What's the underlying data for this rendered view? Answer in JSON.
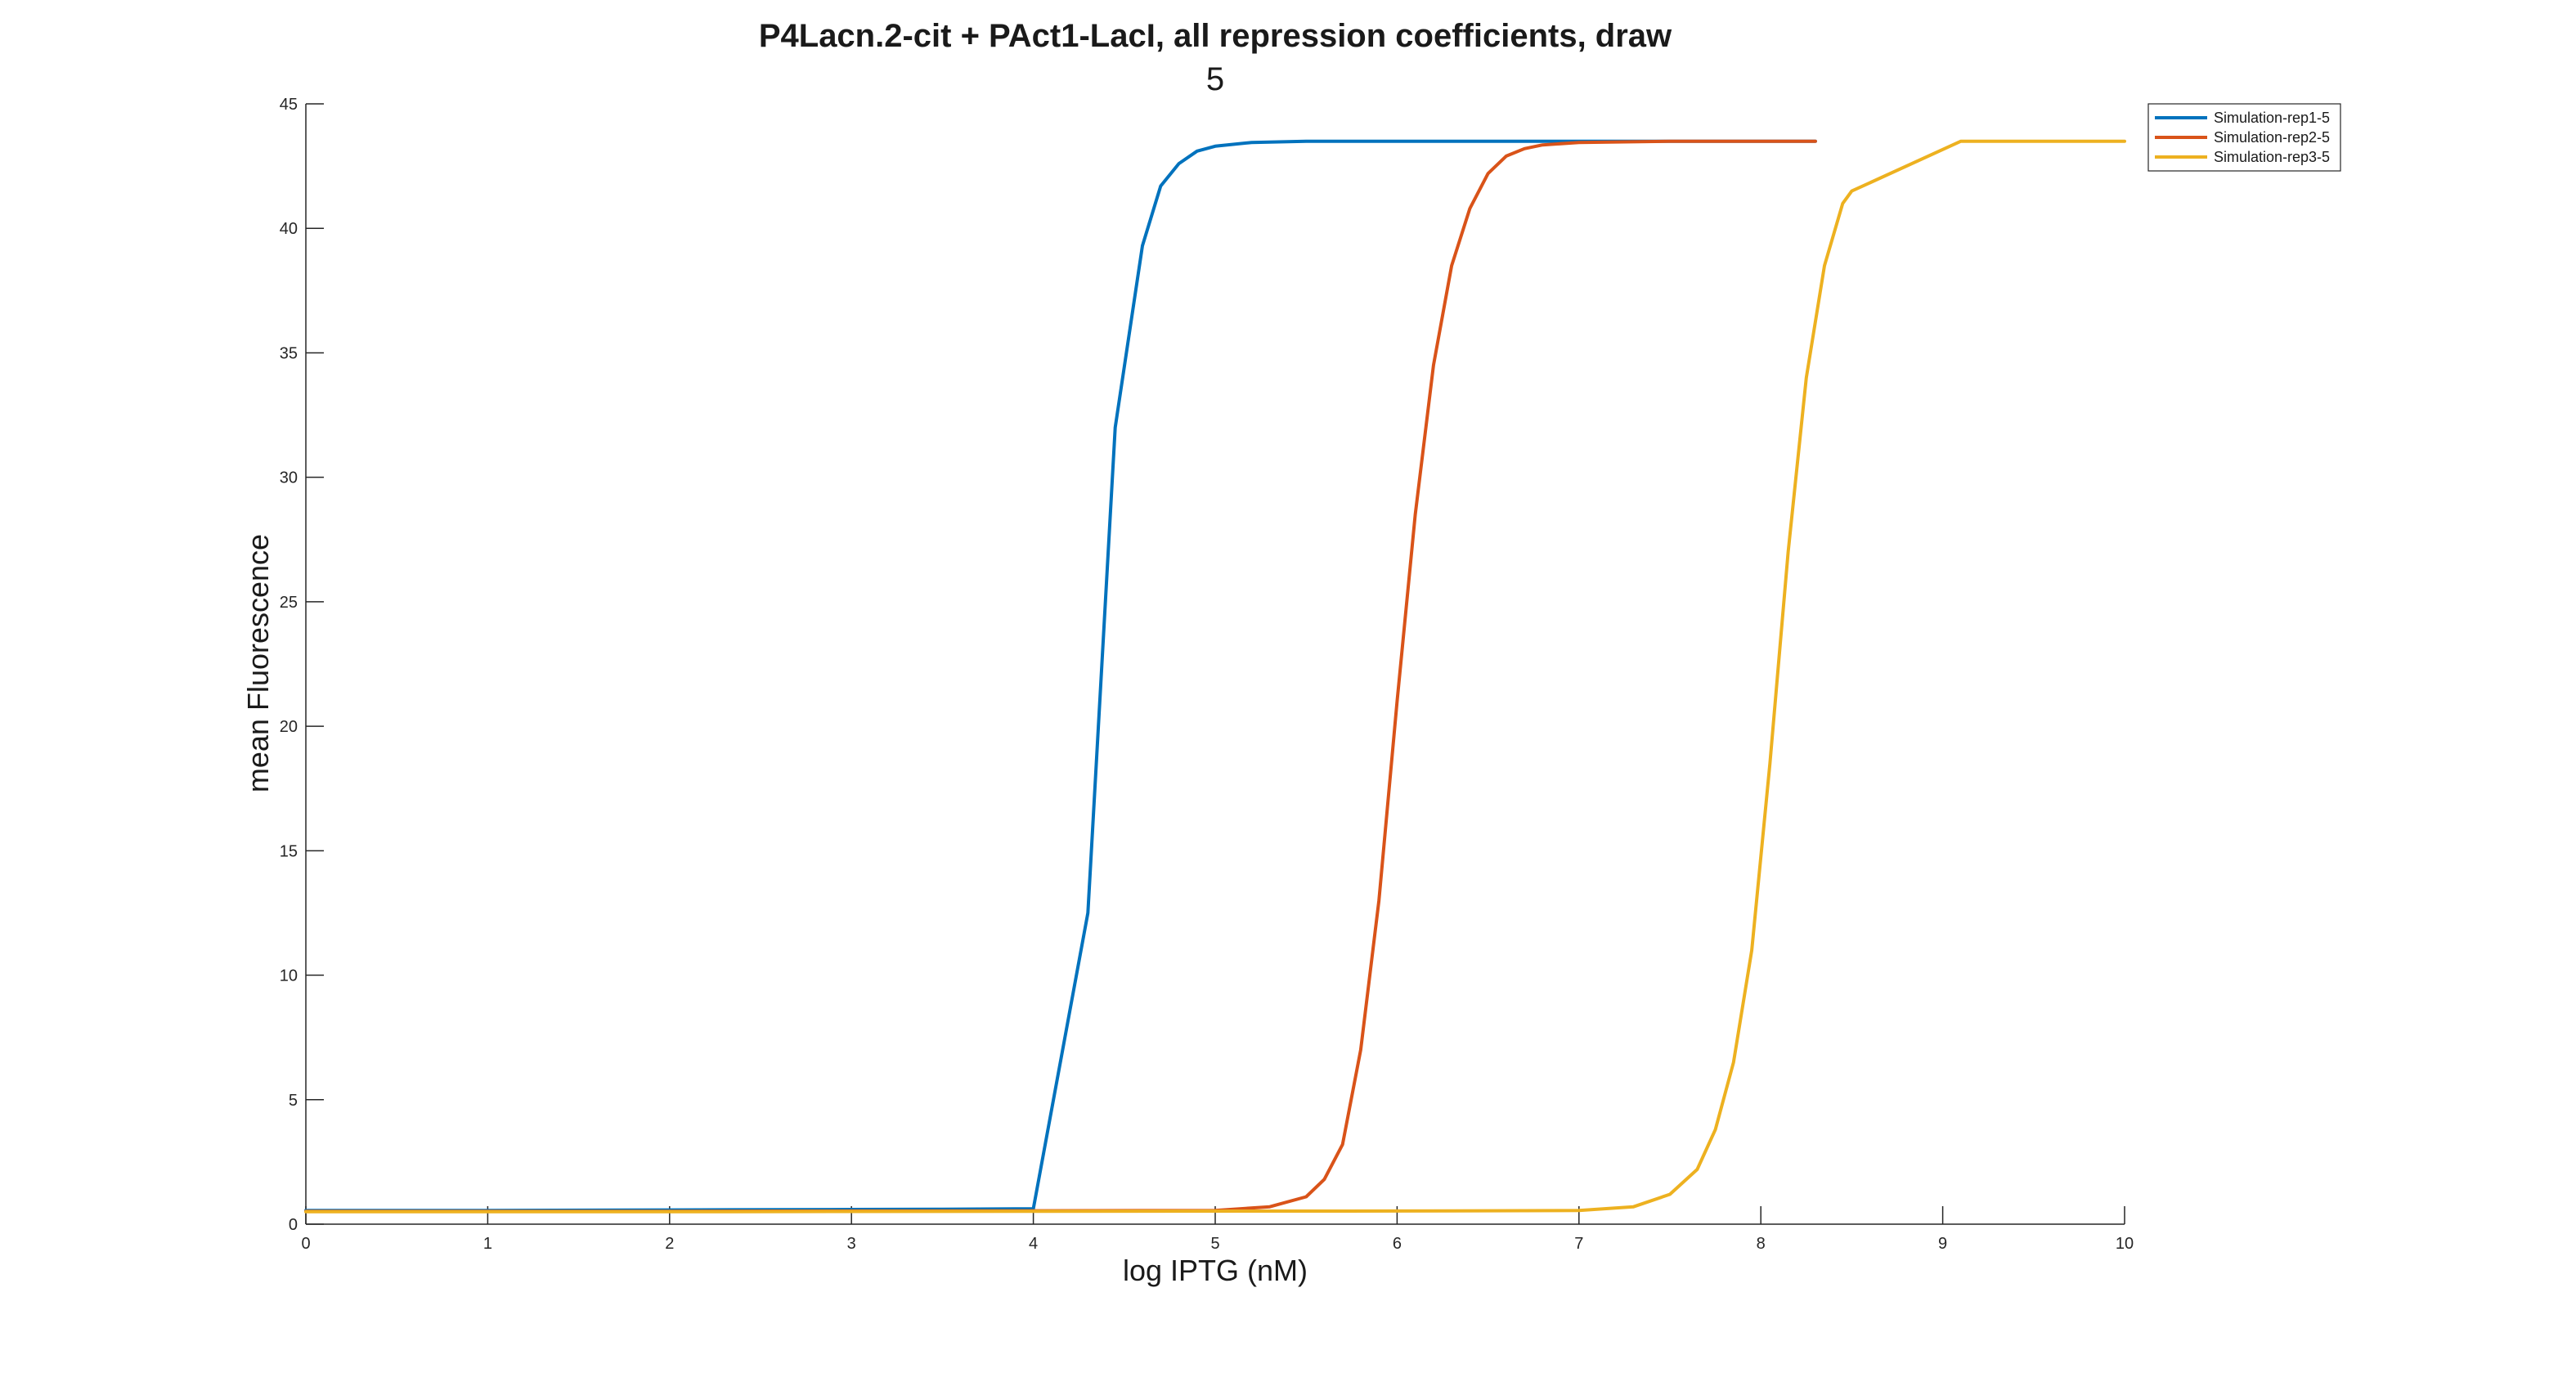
{
  "chart_data": {
    "type": "line",
    "title": "P4Lacn.2-cit + PAct1-LacI, all repression coefficients, draw",
    "subtitle": "5",
    "xlabel": "log IPTG (nM)",
    "ylabel": "mean Fluorescence",
    "xlim": [
      0,
      10
    ],
    "ylim": [
      0,
      45
    ],
    "xticks": [
      0,
      1,
      2,
      3,
      4,
      5,
      6,
      7,
      8,
      9,
      10
    ],
    "yticks": [
      0,
      5,
      10,
      15,
      20,
      25,
      30,
      35,
      40,
      45
    ],
    "grid": false,
    "legend_position": "top-right",
    "series": [
      {
        "name": "Simulation-rep1-5",
        "color": "#0072BD",
        "x": [
          0,
          1,
          2,
          3,
          3.5,
          4.0,
          4.3,
          4.45,
          4.6,
          4.7,
          4.8,
          4.9,
          5.0,
          5.2,
          5.5,
          6,
          7,
          8,
          8.3
        ],
        "y": [
          0.55,
          0.55,
          0.57,
          0.59,
          0.6,
          0.62,
          12.5,
          32.0,
          39.3,
          41.7,
          42.6,
          43.1,
          43.3,
          43.45,
          43.5,
          43.5,
          43.5,
          43.5,
          43.5
        ]
      },
      {
        "name": "Simulation-rep2-5",
        "color": "#D95319",
        "x": [
          0,
          2,
          4,
          5,
          5.3,
          5.5,
          5.6,
          5.7,
          5.8,
          5.9,
          6.0,
          6.1,
          6.2,
          6.3,
          6.4,
          6.5,
          6.6,
          6.7,
          6.8,
          7.0,
          7.5,
          8.3
        ],
        "y": [
          0.52,
          0.52,
          0.54,
          0.55,
          0.7,
          1.1,
          1.8,
          3.2,
          7.0,
          13.0,
          21.0,
          28.5,
          34.5,
          38.5,
          40.8,
          42.2,
          42.9,
          43.2,
          43.35,
          43.45,
          43.5,
          43.5
        ],
        "visible_note": ""
      },
      {
        "name": "Simulation-rep3-5",
        "color": "#EDB120",
        "x": [
          0,
          2,
          4,
          6,
          7,
          7.3,
          7.5,
          7.65,
          7.75,
          7.85,
          7.95,
          8.05,
          8.15,
          8.25,
          8.35,
          8.45,
          8.5,
          9.1,
          9.5,
          10
        ],
        "y": [
          0.5,
          0.5,
          0.52,
          0.53,
          0.55,
          0.7,
          1.2,
          2.2,
          3.8,
          6.5,
          11.0,
          18.5,
          27.0,
          34.0,
          38.5,
          41.0,
          41.5,
          43.5,
          43.5,
          43.5
        ]
      }
    ]
  }
}
